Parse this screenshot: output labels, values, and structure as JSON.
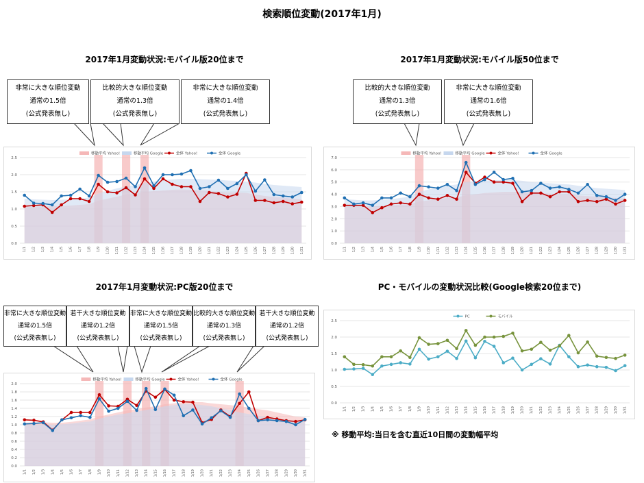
{
  "page": {
    "title": "検索順位変動(2017年1月)"
  },
  "note": "※ 移動平均:当日を含む直近10日間の変動幅平均",
  "chart_data": [
    {
      "id": "mobile20",
      "title": "2017年1月変動状況:モバイル版20位まで",
      "type": "line",
      "categories": [
        "1/1",
        "1/2",
        "1/3",
        "1/4",
        "1/5",
        "1/6",
        "1/7",
        "1/8",
        "1/9",
        "1/10",
        "1/11",
        "1/12",
        "1/13",
        "1/14",
        "1/15",
        "1/16",
        "1/17",
        "1/18",
        "1/19",
        "1/20",
        "1/21",
        "1/22",
        "1/23",
        "1/24",
        "1/25",
        "1/26",
        "1/27",
        "1/28",
        "1/29",
        "1/30",
        "1/31"
      ],
      "ylim": [
        0,
        2.5
      ],
      "yticks": [
        "0.0",
        "0.5",
        "1.0",
        "1.5",
        "2.0",
        "2.5"
      ],
      "legend": [
        "移動平均 Yahoo!",
        "移動平均 Google",
        "全体 Yahoo!",
        "全体 Google"
      ],
      "series": [
        {
          "name": "移動平均 Yahoo!",
          "kind": "area",
          "color": "#f5b8b8",
          "values": [
            1.05,
            1.07,
            1.08,
            1.08,
            1.09,
            1.1,
            1.12,
            1.14,
            1.24,
            1.3,
            1.36,
            1.42,
            1.46,
            1.5,
            1.52,
            1.54,
            1.56,
            1.57,
            1.56,
            1.55,
            1.53,
            1.5,
            1.48,
            1.48,
            1.47,
            1.42,
            1.38,
            1.35,
            1.33,
            1.3,
            1.28
          ]
        },
        {
          "name": "移動平均 Google",
          "kind": "area",
          "color": "#c6d7ee",
          "values": [
            1.3,
            1.28,
            1.27,
            1.26,
            1.27,
            1.28,
            1.3,
            1.33,
            1.45,
            1.53,
            1.6,
            1.66,
            1.7,
            1.76,
            1.8,
            1.84,
            1.86,
            1.88,
            1.88,
            1.87,
            1.86,
            1.85,
            1.83,
            1.82,
            1.8,
            1.77,
            1.73,
            1.7,
            1.68,
            1.66,
            1.64
          ]
        },
        {
          "name": "全体 Yahoo!",
          "kind": "line",
          "color": "#c00000",
          "values": [
            1.08,
            1.1,
            1.12,
            0.9,
            1.12,
            1.3,
            1.3,
            1.22,
            1.72,
            1.5,
            1.47,
            1.62,
            1.41,
            1.88,
            1.6,
            1.88,
            1.72,
            1.65,
            1.65,
            1.22,
            1.48,
            1.45,
            1.35,
            1.43,
            2.04,
            1.25,
            1.25,
            1.18,
            1.22,
            1.15,
            1.2
          ]
        },
        {
          "name": "全体 Google",
          "kind": "line",
          "color": "#1f6fb2",
          "values": [
            1.4,
            1.17,
            1.16,
            1.12,
            1.38,
            1.4,
            1.58,
            1.38,
            1.98,
            1.78,
            1.8,
            1.9,
            1.65,
            2.2,
            1.68,
            2.0,
            2.0,
            2.02,
            2.12,
            1.6,
            1.65,
            1.84,
            1.6,
            1.74,
            2.0,
            1.52,
            1.85,
            1.42,
            1.38,
            1.35,
            1.48
          ]
        }
      ],
      "highlights": [
        8,
        11,
        13
      ]
    },
    {
      "id": "mobile50",
      "title": "2017年1月変動状況:モバイル版50位まで",
      "type": "line",
      "categories": [
        "1/1",
        "1/2",
        "1/3",
        "1/4",
        "1/5",
        "1/6",
        "1/7",
        "1/8",
        "1/9",
        "1/10",
        "1/11",
        "1/12",
        "1/13",
        "1/14",
        "1/15",
        "1/16",
        "1/17",
        "1/18",
        "1/19",
        "1/20",
        "1/21",
        "1/22",
        "1/23",
        "1/24",
        "1/25",
        "1/26",
        "1/27",
        "1/28",
        "1/29",
        "1/30",
        "1/31"
      ],
      "ylim": [
        0,
        7
      ],
      "yticks": [
        "0.0",
        "1.0",
        "2.0",
        "3.0",
        "4.0",
        "5.0",
        "6.0",
        "7.0"
      ],
      "legend": [
        "移動平均 Yahoo!",
        "移動平均 Google",
        "全体 Yahoo!",
        "全体 Google"
      ],
      "series": [
        {
          "name": "移動平均 Yahoo!",
          "kind": "area",
          "color": "#f5b8b8",
          "values": [
            3.0,
            3.0,
            3.0,
            3.0,
            3.05,
            3.1,
            3.15,
            3.2,
            3.4,
            3.5,
            3.6,
            3.7,
            3.75,
            3.9,
            4.0,
            4.1,
            4.15,
            4.2,
            4.2,
            4.2,
            4.15,
            4.1,
            4.05,
            4.0,
            4.0,
            3.9,
            3.85,
            3.8,
            3.75,
            3.7,
            3.65
          ]
        },
        {
          "name": "移動平均 Google",
          "kind": "area",
          "color": "#c6d7ee",
          "values": [
            3.6,
            3.55,
            3.5,
            3.5,
            3.55,
            3.6,
            3.7,
            3.8,
            4.2,
            4.4,
            4.55,
            4.7,
            4.8,
            5.0,
            5.05,
            5.1,
            5.15,
            5.15,
            5.15,
            5.1,
            5.0,
            4.95,
            4.9,
            4.85,
            4.8,
            4.7,
            4.6,
            4.5,
            4.45,
            4.4,
            4.35
          ]
        },
        {
          "name": "全体 Yahoo!",
          "kind": "line",
          "color": "#c00000",
          "values": [
            3.1,
            3.1,
            3.1,
            2.5,
            2.9,
            3.2,
            3.3,
            3.2,
            4.0,
            3.7,
            3.6,
            3.9,
            3.6,
            5.8,
            4.9,
            5.4,
            5.0,
            5.0,
            4.9,
            3.4,
            4.1,
            4.1,
            3.8,
            4.2,
            4.2,
            3.4,
            3.5,
            3.4,
            3.6,
            3.2,
            3.5
          ]
        },
        {
          "name": "全体 Google",
          "kind": "line",
          "color": "#1f6fb2",
          "values": [
            3.7,
            3.2,
            3.3,
            3.1,
            3.7,
            3.7,
            4.1,
            3.8,
            4.7,
            4.6,
            4.5,
            4.8,
            4.3,
            6.6,
            4.8,
            5.2,
            5.8,
            5.2,
            5.3,
            4.2,
            4.3,
            4.9,
            4.5,
            4.6,
            4.4,
            4.1,
            4.8,
            3.9,
            3.8,
            3.5,
            4.0
          ]
        }
      ],
      "highlights": [
        8,
        13
      ]
    },
    {
      "id": "pc20",
      "title": "2017年1月変動状況:PC版20位まで",
      "type": "line",
      "categories": [
        "1/1",
        "1/2",
        "1/3",
        "1/4",
        "1/5",
        "1/6",
        "1/7",
        "1/8",
        "1/9",
        "1/10",
        "1/11",
        "1/12",
        "1/13",
        "1/14",
        "1/15",
        "1/16",
        "1/17",
        "1/18",
        "1/19",
        "1/20",
        "1/21",
        "1/22",
        "1/23",
        "1/24",
        "1/25",
        "1/26",
        "1/27",
        "1/28",
        "1/29",
        "1/30",
        "1/31"
      ],
      "ylim": [
        0,
        2.0
      ],
      "yticks": [
        "0.0",
        "0.2",
        "0.4",
        "0.6",
        "0.8",
        "1.0",
        "1.2",
        "1.4",
        "1.6",
        "1.8",
        "2.0"
      ],
      "legend": [
        "移動平均 Yahoo!",
        "移動平均 Google",
        "全体 Yahoo!",
        "全体 Google"
      ],
      "series": [
        {
          "name": "移動平均 Yahoo!",
          "kind": "area",
          "color": "#f5b8b8",
          "values": [
            1.05,
            1.06,
            1.06,
            1.05,
            1.05,
            1.07,
            1.1,
            1.13,
            1.2,
            1.25,
            1.3,
            1.35,
            1.38,
            1.42,
            1.45,
            1.5,
            1.52,
            1.55,
            1.55,
            1.55,
            1.52,
            1.5,
            1.48,
            1.45,
            1.42,
            1.38,
            1.35,
            1.3,
            1.25,
            1.2,
            1.18
          ]
        },
        {
          "name": "移動平均 Google",
          "kind": "area",
          "color": "#c6d7ee",
          "values": [
            1.0,
            1.0,
            1.0,
            1.0,
            1.01,
            1.03,
            1.06,
            1.08,
            1.15,
            1.2,
            1.25,
            1.28,
            1.32,
            1.36,
            1.4,
            1.45,
            1.48,
            1.5,
            1.5,
            1.48,
            1.45,
            1.4,
            1.36,
            1.3,
            1.26,
            1.22,
            1.18,
            1.15,
            1.12,
            1.1,
            1.1
          ]
        },
        {
          "name": "全体 Yahoo!",
          "kind": "line",
          "color": "#c00000",
          "values": [
            1.12,
            1.11,
            1.07,
            0.87,
            1.12,
            1.3,
            1.3,
            1.3,
            1.73,
            1.46,
            1.45,
            1.62,
            1.47,
            1.82,
            1.67,
            1.86,
            1.6,
            1.56,
            1.55,
            1.05,
            1.13,
            1.36,
            1.2,
            1.52,
            1.8,
            1.1,
            1.18,
            1.14,
            1.1,
            1.08,
            1.12
          ]
        },
        {
          "name": "全体 Google",
          "kind": "line",
          "color": "#1f6fb2",
          "values": [
            1.02,
            1.03,
            1.05,
            0.86,
            1.12,
            1.17,
            1.22,
            1.18,
            1.63,
            1.33,
            1.4,
            1.57,
            1.35,
            1.88,
            1.37,
            1.87,
            1.72,
            1.22,
            1.36,
            1.02,
            1.17,
            1.34,
            1.18,
            1.75,
            1.4,
            1.1,
            1.12,
            1.1,
            1.08,
            1.0,
            1.13
          ]
        }
      ],
      "highlights": [
        8,
        11,
        13,
        15,
        23
      ]
    },
    {
      "id": "compare",
      "title": "PC・モバイルの変動状況比較(Google検索20位まで)",
      "type": "line",
      "categories": [
        "1/1",
        "1/2",
        "1/3",
        "1/4",
        "1/5",
        "1/6",
        "1/7",
        "1/8",
        "1/9",
        "1/10",
        "1/11",
        "1/12",
        "1/13",
        "1/14",
        "1/15",
        "1/16",
        "1/17",
        "1/18",
        "1/19",
        "1/20",
        "1/21",
        "1/22",
        "1/23",
        "1/24",
        "1/25",
        "1/26",
        "1/27",
        "1/28",
        "1/29",
        "1/30",
        "1/31"
      ],
      "ylim": [
        0,
        2.5
      ],
      "yticks": [
        "0.0",
        "0.5",
        "1.0",
        "1.5",
        "2.0",
        "2.5"
      ],
      "legend": [
        "PC",
        "モバイル"
      ],
      "series": [
        {
          "name": "PC",
          "kind": "line",
          "color": "#4bacc6",
          "values": [
            1.02,
            1.03,
            1.05,
            0.86,
            1.12,
            1.17,
            1.22,
            1.18,
            1.63,
            1.33,
            1.4,
            1.57,
            1.35,
            1.88,
            1.37,
            1.87,
            1.72,
            1.22,
            1.36,
            1.0,
            1.17,
            1.34,
            1.18,
            1.75,
            1.4,
            1.1,
            1.15,
            1.1,
            1.08,
            0.98,
            1.13
          ]
        },
        {
          "name": "モバイル",
          "kind": "line",
          "color": "#77933c",
          "values": [
            1.4,
            1.17,
            1.16,
            1.12,
            1.4,
            1.4,
            1.58,
            1.38,
            1.98,
            1.78,
            1.8,
            1.9,
            1.65,
            2.2,
            1.75,
            2.0,
            2.0,
            2.02,
            2.12,
            1.58,
            1.63,
            1.84,
            1.6,
            1.73,
            2.05,
            1.52,
            1.85,
            1.42,
            1.38,
            1.35,
            1.45
          ]
        }
      ],
      "highlights": []
    }
  ],
  "callouts": {
    "mobile20": [
      {
        "l1": "非常に大きな順位変動",
        "l2": "通常の1.5倍",
        "l3": "(公式発表無し)"
      },
      {
        "l1": "比較的大きな順位変動",
        "l2": "通常の1.3倍",
        "l3": "(公式発表無し)"
      },
      {
        "l1": "非常に大きな順位変動",
        "l2": "通常の1.4倍",
        "l3": "(公式発表無し)"
      }
    ],
    "mobile50": [
      {
        "l1": "比較的大きな順位変動",
        "l2": "通常の1.3倍",
        "l3": "(公式発表無し)"
      },
      {
        "l1": "非常に大きな順位変動",
        "l2": "通常の1.6倍",
        "l3": "(公式発表無し)"
      }
    ],
    "pc20": [
      {
        "l1": "非常に大きな順位変動",
        "l2": "通常の1.5倍",
        "l3": "(公式発表無し)"
      },
      {
        "l1": "若干大きな順位変動",
        "l2": "通常の1.2倍",
        "l3": "(公式発表無し)"
      },
      {
        "l1": "非常に大きな順位変動",
        "l2": "通常の1.5倍",
        "l3": "(公式発表無し)"
      },
      {
        "l1": "比較的大きな順位変動",
        "l2": "通常の1.3倍",
        "l3": "(公式発表無し)"
      },
      {
        "l1": "若干大きな順位変動",
        "l2": "通常の1.2倍",
        "l3": "(公式発表無し)"
      }
    ]
  }
}
